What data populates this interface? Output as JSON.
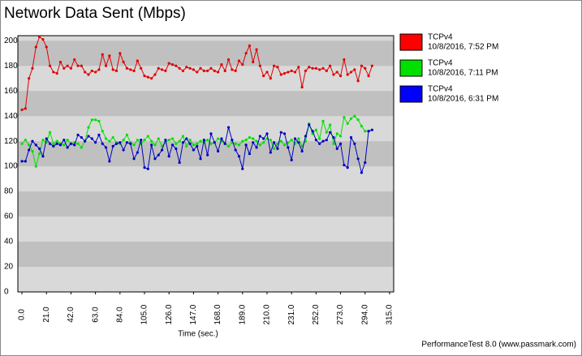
{
  "chart_data": {
    "type": "line",
    "title": "Network Data Sent (Mbps)",
    "x_label": "Time (sec.)",
    "footer": "PerformanceTest 8.0 (www.passmark.com)",
    "xlim": [
      -3.5,
      318.5
    ],
    "ylim": [
      0,
      204
    ],
    "xticks": [
      {
        "value": 0,
        "label": "0.0"
      },
      {
        "value": 21,
        "label": "21.0"
      },
      {
        "value": 42,
        "label": "42.0"
      },
      {
        "value": 63,
        "label": "63.0"
      },
      {
        "value": 84,
        "label": "84.0"
      },
      {
        "value": 105,
        "label": "105.0"
      },
      {
        "value": 126,
        "label": "126.0"
      },
      {
        "value": 147,
        "label": "147.0"
      },
      {
        "value": 168,
        "label": "168.0"
      },
      {
        "value": 189,
        "label": "189.0"
      },
      {
        "value": 210,
        "label": "210.0"
      },
      {
        "value": 231,
        "label": "231.0"
      },
      {
        "value": 252,
        "label": "252.0"
      },
      {
        "value": 273,
        "label": "273.0"
      },
      {
        "value": 294,
        "label": "294.0"
      },
      {
        "value": 315,
        "label": "315.0"
      }
    ],
    "yticks": [
      0,
      20,
      40,
      60,
      80,
      100,
      120,
      140,
      160,
      180,
      200
    ],
    "x": [
      0,
      3,
      6,
      9,
      12,
      15,
      18,
      21,
      24,
      27,
      30,
      33,
      36,
      39,
      42,
      45,
      48,
      51,
      54,
      57,
      60,
      63,
      66,
      69,
      72,
      75,
      78,
      81,
      84,
      87,
      90,
      93,
      96,
      99,
      102,
      105,
      108,
      111,
      114,
      117,
      120,
      123,
      126,
      129,
      132,
      135,
      138,
      141,
      144,
      147,
      150,
      153,
      156,
      159,
      162,
      165,
      168,
      171,
      174,
      177,
      180,
      183,
      186,
      189,
      192,
      195,
      198,
      201,
      204,
      207,
      210,
      213,
      216,
      219,
      222,
      225,
      228,
      231,
      234,
      237,
      240,
      243,
      246,
      249,
      252,
      255,
      258,
      261,
      264,
      267,
      270,
      273,
      276,
      279,
      282,
      285,
      288,
      291,
      294,
      297,
      300
    ],
    "series": [
      {
        "name": "TCPv4",
        "date": "10/8/2016, 7:52 PM",
        "color": "#e00000",
        "values": [
          145,
          146,
          170,
          178,
          195,
          203,
          201,
          195,
          180,
          175,
          174,
          183,
          178,
          180,
          178,
          185,
          180,
          180,
          175,
          173,
          176,
          175,
          177,
          189,
          180,
          188,
          177,
          176,
          190,
          183,
          178,
          177,
          176,
          184,
          178,
          172,
          171,
          170,
          173,
          178,
          177,
          176,
          182,
          181,
          180,
          178,
          176,
          179,
          178,
          177,
          175,
          178,
          176,
          176,
          178,
          176,
          175,
          181,
          176,
          185,
          177,
          176,
          184,
          181,
          190,
          196,
          183,
          193,
          180,
          172,
          175,
          170,
          180,
          179,
          173,
          174,
          175,
          176,
          175,
          179,
          163,
          176,
          179,
          178,
          178,
          177,
          178,
          176,
          180,
          173,
          175,
          172,
          185,
          173,
          175,
          177,
          168,
          180,
          178,
          172,
          180
        ]
      },
      {
        "name": "TCPv4",
        "date": "10/8/2016, 7:11 PM",
        "color": "#00e000",
        "values": [
          118,
          121,
          117,
          112,
          100,
          110,
          121,
          119,
          127,
          118,
          120,
          118,
          117,
          121,
          118,
          119,
          118,
          115,
          120,
          131,
          137,
          137,
          136,
          128,
          122,
          120,
          123,
          119,
          118,
          121,
          125,
          119,
          117,
          121,
          118,
          121,
          124,
          120,
          117,
          122,
          116,
          119,
          121,
          122,
          118,
          120,
          124,
          116,
          121,
          117,
          118,
          120,
          119,
          121,
          118,
          119,
          122,
          120,
          118,
          116,
          119,
          118,
          117,
          120,
          121,
          123,
          122,
          120,
          117,
          119,
          122,
          121,
          114,
          118,
          120,
          117,
          119,
          121,
          118,
          122,
          116,
          120,
          134,
          126,
          129,
          122,
          136,
          127,
          133,
          118,
          126,
          124,
          139,
          134,
          138,
          140,
          137,
          132,
          128,
          128,
          129
        ]
      },
      {
        "name": "TCPv4",
        "date": "10/8/2016, 6:31 PM",
        "color": "#0000c0",
        "values": [
          104,
          104,
          113,
          120,
          117,
          114,
          108,
          122,
          118,
          116,
          118,
          117,
          121,
          115,
          118,
          117,
          125,
          123,
          120,
          124,
          122,
          119,
          125,
          118,
          115,
          104,
          116,
          118,
          119,
          113,
          119,
          118,
          106,
          111,
          121,
          99,
          98,
          117,
          106,
          109,
          113,
          121,
          108,
          117,
          114,
          103,
          119,
          122,
          118,
          113,
          116,
          106,
          121,
          109,
          126,
          119,
          112,
          122,
          118,
          131,
          121,
          113,
          108,
          98,
          117,
          110,
          119,
          115,
          124,
          122,
          126,
          111,
          119,
          114,
          127,
          126,
          115,
          105,
          122,
          119,
          112,
          124,
          133,
          128,
          121,
          118,
          120,
          121,
          127,
          123,
          114,
          118,
          101,
          99,
          123,
          118,
          106,
          95,
          103,
          128,
          129
        ]
      }
    ]
  }
}
